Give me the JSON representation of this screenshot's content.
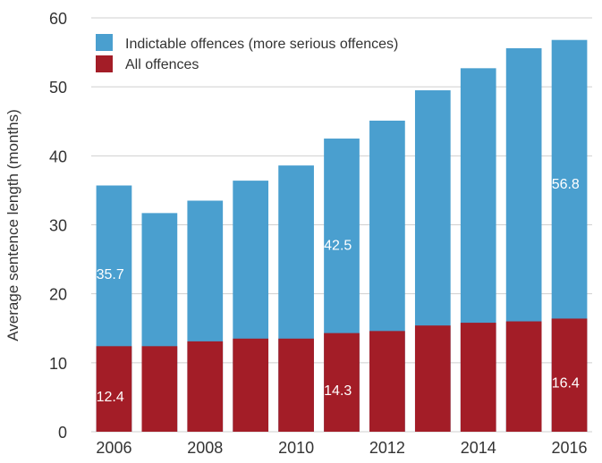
{
  "chart_data": {
    "type": "bar",
    "stacked": false,
    "overlapping": true,
    "ylabel": "Average sentence length (months)",
    "xlabel": "",
    "ylim": [
      0,
      60
    ],
    "yticks": [
      "0",
      "10",
      "20",
      "30",
      "40",
      "50",
      "60"
    ],
    "x_tick_labels": [
      "2006",
      "2008",
      "2010",
      "2012",
      "2014",
      "2016"
    ],
    "categories": [
      "2006",
      "2007",
      "2008",
      "2009",
      "2010",
      "2011",
      "2012",
      "2013",
      "2014",
      "2015",
      "2016"
    ],
    "grid": true,
    "legend_position": "top-left",
    "series": [
      {
        "name": "Indictable offences (more serious offences)",
        "color": "#4A9FCF",
        "values": [
          35.7,
          31.7,
          33.5,
          36.4,
          38.6,
          42.5,
          45.1,
          49.5,
          52.7,
          55.6,
          56.8
        ],
        "data_labels": {
          "0": "35.7",
          "5": "42.5",
          "10": "56.8"
        }
      },
      {
        "name": "All offences",
        "color": "#A31D27",
        "values": [
          12.4,
          12.4,
          13.1,
          13.5,
          13.5,
          14.3,
          14.6,
          15.4,
          15.8,
          16.0,
          16.4
        ],
        "data_labels": {
          "0": "12.4",
          "5": "14.3",
          "10": "16.4"
        }
      }
    ]
  }
}
